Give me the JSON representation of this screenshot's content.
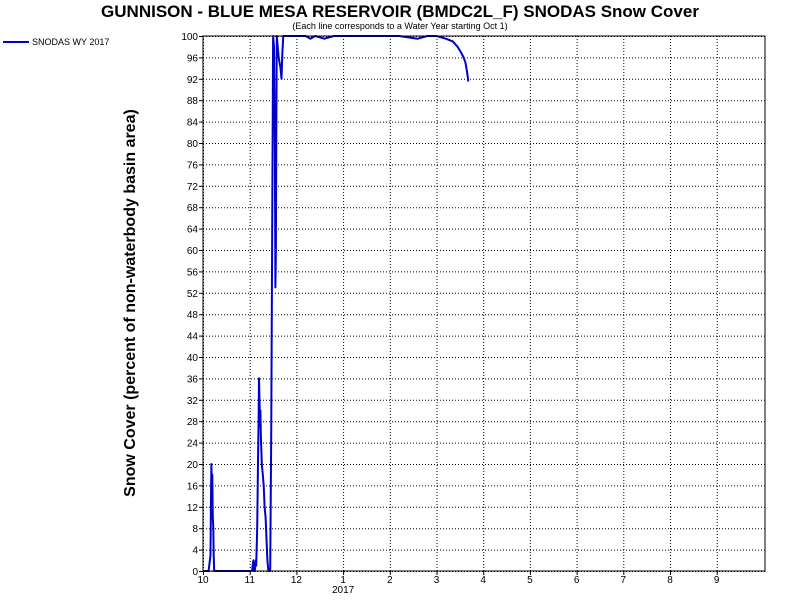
{
  "chart_data": {
    "type": "line",
    "title": "GUNNISON - BLUE MESA RESERVOIR (BMDC2L_F) SNODAS Snow Cover",
    "subtitle": "(Each line corresponds to a Water Year starting Oct 1)",
    "ylabel": "Snow Cover (percent of non-waterbody basin area)",
    "xlabel": "",
    "ylim": [
      0,
      100
    ],
    "y_ticks": [
      0,
      4,
      8,
      12,
      16,
      20,
      24,
      28,
      32,
      36,
      40,
      44,
      48,
      52,
      56,
      60,
      64,
      68,
      72,
      76,
      80,
      84,
      88,
      92,
      96,
      100
    ],
    "x_ticks": [
      {
        "x": 0,
        "label": "10"
      },
      {
        "x": 1,
        "label": "11"
      },
      {
        "x": 2,
        "label": "12"
      },
      {
        "x": 3,
        "label": "1"
      },
      {
        "x": 4,
        "label": "2"
      },
      {
        "x": 5,
        "label": "3"
      },
      {
        "x": 6,
        "label": "4"
      },
      {
        "x": 7,
        "label": "5"
      },
      {
        "x": 8,
        "label": "6"
      },
      {
        "x": 9,
        "label": "7"
      },
      {
        "x": 10,
        "label": "8"
      },
      {
        "x": 11,
        "label": "9"
      }
    ],
    "x_range": [
      0,
      12
    ],
    "x_sublabel": {
      "x": 3,
      "label": "2017"
    },
    "grid": true,
    "legend_position": "top-left",
    "line_color": "#0000cc",
    "series": [
      {
        "name": "SNODAS WY 2017",
        "points": [
          [
            0.0,
            0
          ],
          [
            0.12,
            0
          ],
          [
            0.16,
            3
          ],
          [
            0.17,
            12
          ],
          [
            0.18,
            20
          ],
          [
            0.19,
            14
          ],
          [
            0.2,
            18
          ],
          [
            0.21,
            10
          ],
          [
            0.22,
            8
          ],
          [
            0.23,
            3
          ],
          [
            0.24,
            0
          ],
          [
            0.3,
            0
          ],
          [
            0.6,
            0
          ],
          [
            0.95,
            0
          ],
          [
            1.05,
            0
          ],
          [
            1.08,
            2
          ],
          [
            1.09,
            0
          ],
          [
            1.1,
            1
          ],
          [
            1.11,
            0
          ],
          [
            1.13,
            2
          ],
          [
            1.14,
            1
          ],
          [
            1.16,
            8
          ],
          [
            1.17,
            14
          ],
          [
            1.18,
            22
          ],
          [
            1.19,
            28
          ],
          [
            1.2,
            36
          ],
          [
            1.21,
            32
          ],
          [
            1.22,
            27
          ],
          [
            1.23,
            30
          ],
          [
            1.24,
            25
          ],
          [
            1.26,
            20
          ],
          [
            1.28,
            18
          ],
          [
            1.3,
            16
          ],
          [
            1.32,
            12
          ],
          [
            1.34,
            10
          ],
          [
            1.36,
            6
          ],
          [
            1.38,
            2
          ],
          [
            1.4,
            0
          ],
          [
            1.42,
            0
          ],
          [
            1.44,
            0
          ],
          [
            1.46,
            25
          ],
          [
            1.48,
            60
          ],
          [
            1.5,
            100
          ],
          [
            1.52,
            98
          ],
          [
            1.53,
            86
          ],
          [
            1.54,
            78
          ],
          [
            1.55,
            53
          ],
          [
            1.56,
            60
          ],
          [
            1.57,
            82
          ],
          [
            1.58,
            100
          ],
          [
            1.6,
            98
          ],
          [
            1.62,
            96
          ],
          [
            1.64,
            95
          ],
          [
            1.66,
            94
          ],
          [
            1.68,
            92
          ],
          [
            1.7,
            97
          ],
          [
            1.72,
            100
          ],
          [
            1.8,
            100
          ],
          [
            2.0,
            100
          ],
          [
            2.2,
            100
          ],
          [
            2.3,
            99.5
          ],
          [
            2.4,
            100
          ],
          [
            2.6,
            99.5
          ],
          [
            2.8,
            100
          ],
          [
            3.0,
            100
          ],
          [
            3.4,
            100
          ],
          [
            3.8,
            100
          ],
          [
            4.2,
            100
          ],
          [
            4.6,
            99.5
          ],
          [
            4.8,
            100
          ],
          [
            5.0,
            100
          ],
          [
            5.2,
            99.5
          ],
          [
            5.35,
            99
          ],
          [
            5.45,
            98
          ],
          [
            5.52,
            97
          ],
          [
            5.58,
            96
          ],
          [
            5.62,
            95
          ],
          [
            5.66,
            93
          ],
          [
            5.68,
            91.5
          ]
        ]
      }
    ]
  },
  "colors": {
    "background": "#ffffff",
    "grid": "#000000",
    "series": "#0000cc"
  }
}
